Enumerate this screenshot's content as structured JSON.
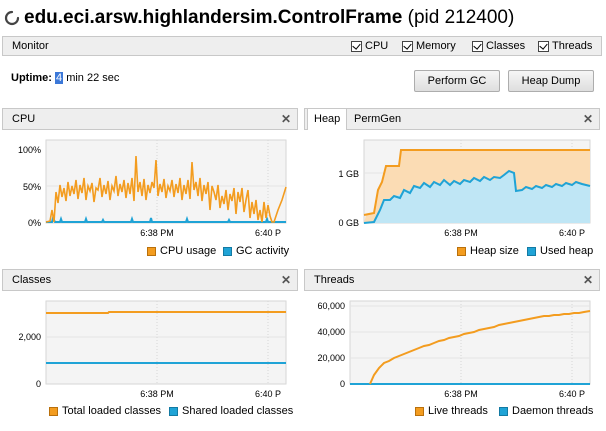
{
  "window": {
    "app_name": "edu.eci.arsw.highlandersim.ControlFrame",
    "pid_text": "(pid 212400)"
  },
  "monitor": {
    "label": "Monitor",
    "checkboxes": [
      {
        "label": "CPU",
        "checked": true
      },
      {
        "label": "Memory",
        "checked": true
      },
      {
        "label": "Classes",
        "checked": true
      },
      {
        "label": "Threads",
        "checked": true
      }
    ]
  },
  "uptime": {
    "label": "Uptime:",
    "minutes": "4",
    "rest": " min 22 sec"
  },
  "buttons": {
    "perform_gc": "Perform GC",
    "heap_dump": "Heap Dump"
  },
  "colors": {
    "orange": "#f39c1f",
    "blue": "#1fa3d6"
  },
  "panels": {
    "cpu": {
      "title": "CPU",
      "y_ticks": [
        "100%",
        "50%",
        "0%"
      ],
      "x_ticks": [
        "6:38 PM",
        "6:40 P"
      ],
      "legend": [
        "CPU usage",
        "GC activity"
      ]
    },
    "heap": {
      "tabs": [
        "Heap",
        "PermGen"
      ],
      "active_tab": "Heap",
      "y_ticks": [
        "1 GB",
        "0 GB"
      ],
      "x_ticks": [
        "6:38 PM",
        "6:40 P"
      ],
      "legend": [
        "Heap size",
        "Used heap"
      ]
    },
    "classes": {
      "title": "Classes",
      "y_ticks": [
        "2,000",
        "0"
      ],
      "x_ticks": [
        "6:38 PM",
        "6:40 P"
      ],
      "legend": [
        "Total loaded classes",
        "Shared loaded classes"
      ]
    },
    "threads": {
      "title": "Threads",
      "y_ticks": [
        "60,000",
        "40,000",
        "20,000",
        "0"
      ],
      "x_ticks": [
        "6:38 PM",
        "6:40 P"
      ],
      "legend": [
        "Live threads",
        "Daemon threads"
      ]
    }
  }
}
